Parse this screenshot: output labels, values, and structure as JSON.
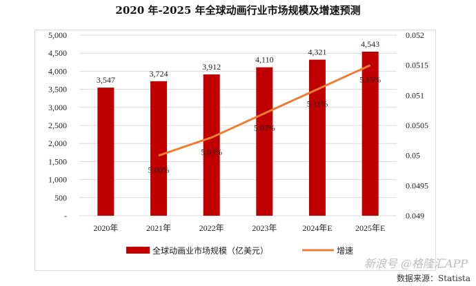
{
  "chart_data": {
    "type": "bar+line",
    "title": "2020 年-2025 年全球动画行业市场规模及增速预测",
    "categories": [
      "2020年",
      "2021年",
      "2022年",
      "2023年",
      "2024年E",
      "2025年E"
    ],
    "series": [
      {
        "name": "全球动画业市场规模（亿美元）",
        "type": "bar",
        "axis": "left",
        "values": [
          3547,
          3724,
          3912,
          4110,
          4321,
          4543
        ],
        "labels": [
          "3,547",
          "3,724",
          "3,912",
          "4,110",
          "4,321",
          "4,543"
        ],
        "color": "#c00000"
      },
      {
        "name": "增速",
        "type": "line",
        "axis": "right",
        "values": [
          null,
          0.05,
          0.0503,
          0.0507,
          0.0511,
          0.0515
        ],
        "labels": [
          "",
          "5.00%",
          "5.03%",
          "5.07%",
          "5.11%",
          "5.15%"
        ],
        "color": "#ed7d31"
      }
    ],
    "left_axis": {
      "ylim": [
        0,
        5000
      ],
      "ticks": [
        "-",
        "500",
        "1,000",
        "1,500",
        "2,000",
        "2,500",
        "3,000",
        "3,500",
        "4,000",
        "4,500",
        "5,000"
      ]
    },
    "right_axis": {
      "ylim": [
        0.049,
        0.052
      ],
      "ticks": [
        "0.049",
        "0.0495",
        "0.05",
        "0.0505",
        "0.051",
        "0.0515",
        "0.052"
      ]
    },
    "grid": true,
    "legend_position": "bottom"
  },
  "source": "数据来源：Statista",
  "watermark": "新浪号 @格隆汇APP"
}
